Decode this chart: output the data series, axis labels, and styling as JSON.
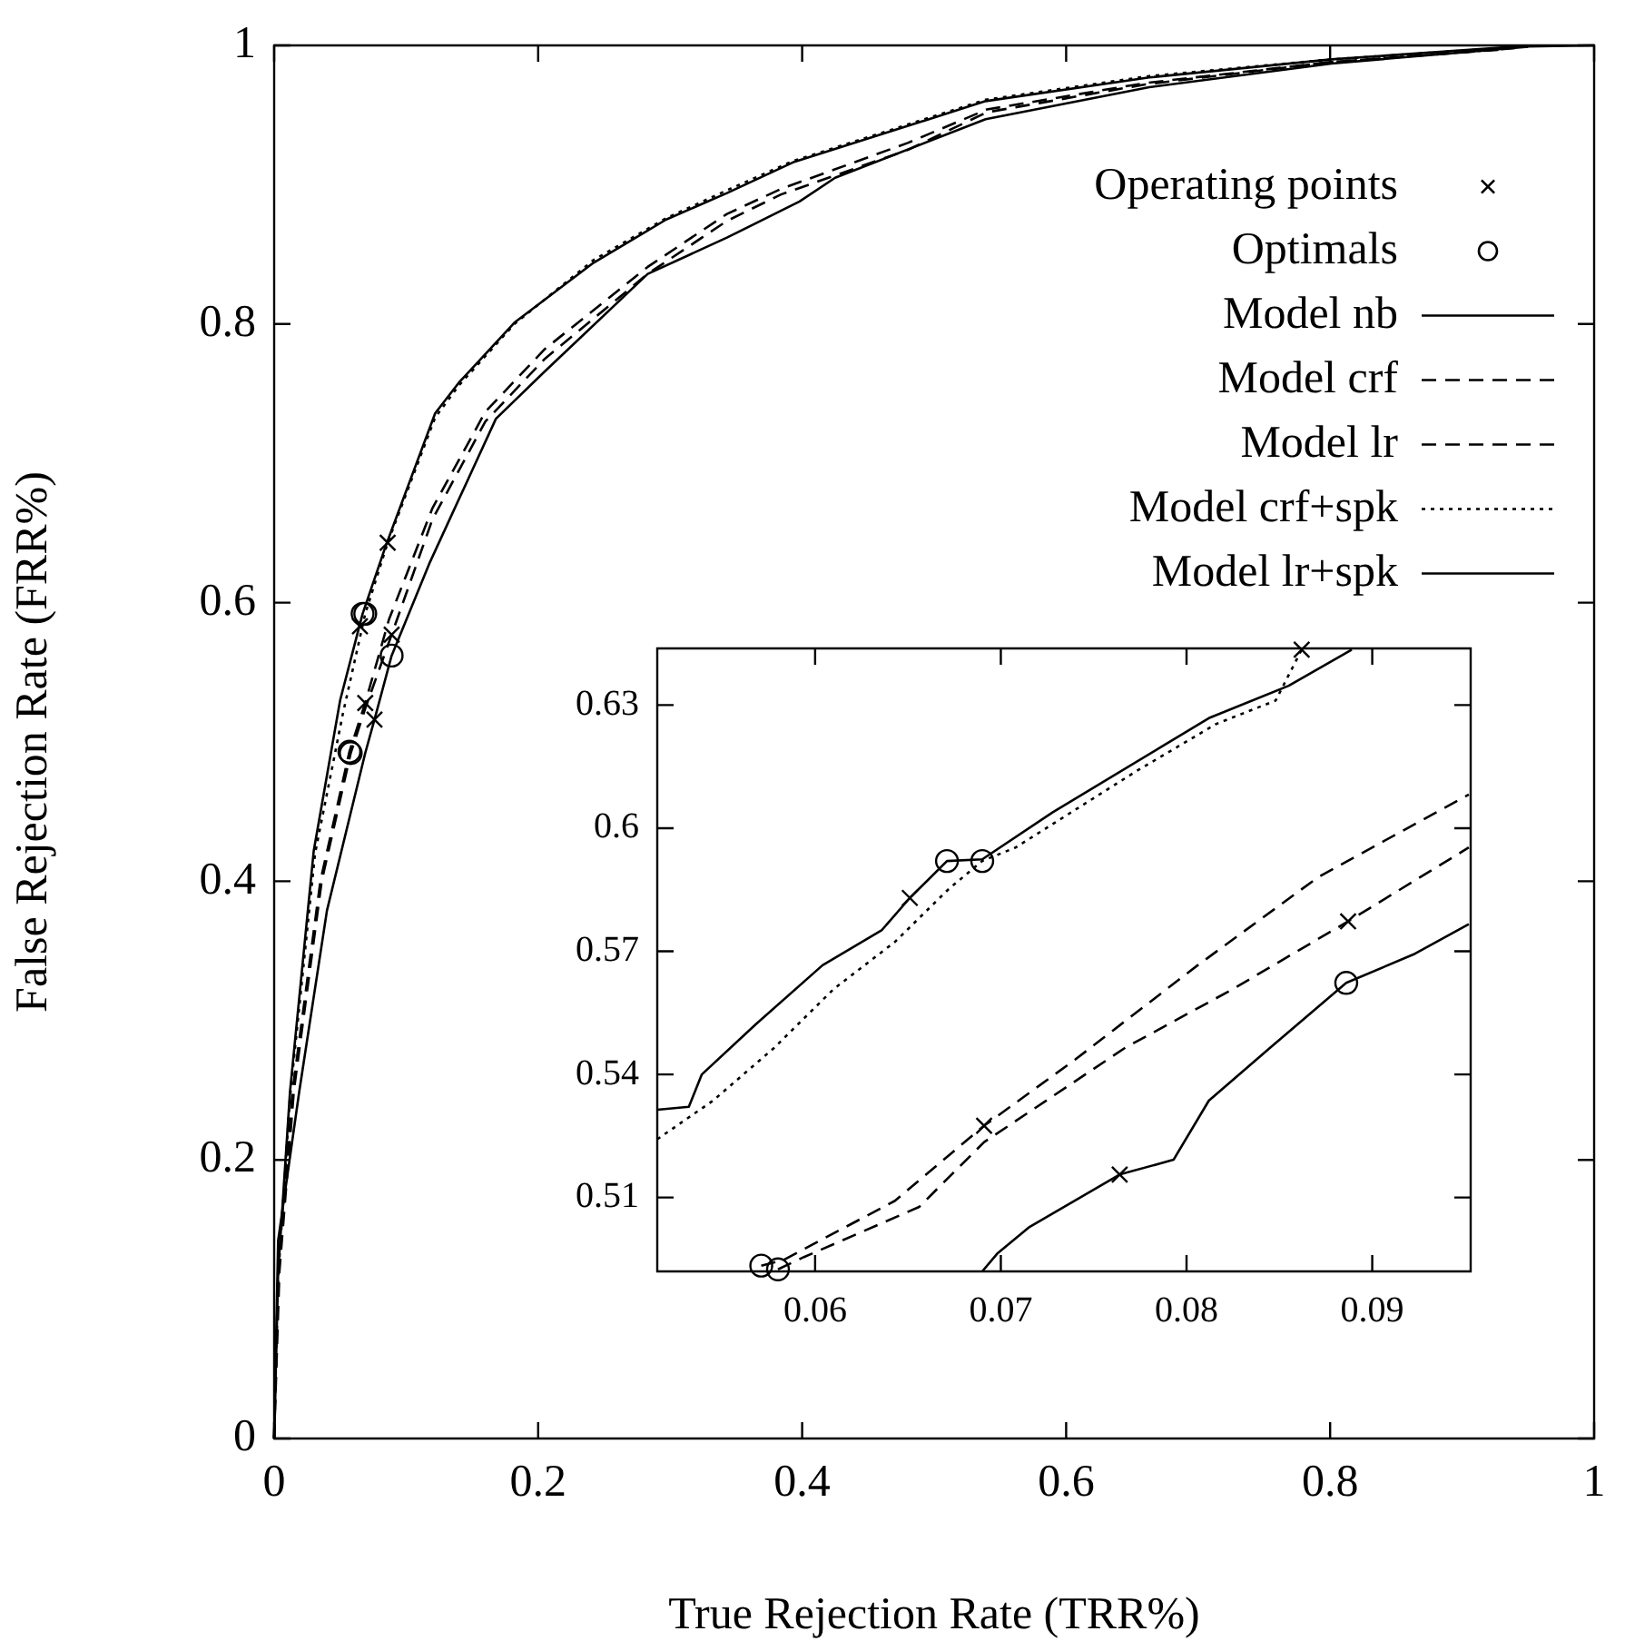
{
  "chart_data": [
    {
      "type": "line",
      "xlabel": "True Rejection Rate (TRR%)",
      "ylabel": "False Rejection Rate (FRR%)",
      "xlim": [
        0,
        1
      ],
      "xticks": [
        0,
        0.2,
        0.4,
        0.6,
        0.8,
        1
      ],
      "ylim": [
        0,
        1
      ],
      "yticks": [
        0,
        0.2,
        0.4,
        0.6,
        0.8,
        1
      ],
      "legend": "top right",
      "series": [
        {
          "type": "scatter",
          "name": "Operating points",
          "color": "#000000",
          "marker": "cross",
          "x": [
            0.076,
            0.089,
            0.069,
            0.086,
            0.065
          ],
          "values": [
            0.516,
            0.577,
            0.528,
            0.643,
            0.583
          ]
        },
        {
          "type": "scatter",
          "name": "Optimals",
          "color": "#000000",
          "marker": "circle",
          "x": [
            0.089,
            0.058,
            0.057,
            0.069,
            0.067
          ],
          "values": [
            0.562,
            0.492,
            0.493,
            0.592,
            0.592
          ]
        },
        {
          "type": "line",
          "name": "Model nb",
          "color": "#000000",
          "line_style": "solid",
          "x": [
            0,
            0.003,
            0.019,
            0.04,
            0.069,
            0.076,
            0.089,
            0.118,
            0.168,
            0.205,
            0.283,
            0.343,
            0.398,
            0.425,
            0.539,
            0.663,
            0.801,
            0.95
          ],
          "values": [
            0,
            0.142,
            0.249,
            0.379,
            0.492,
            0.516,
            0.562,
            0.629,
            0.732,
            0.766,
            0.836,
            0.862,
            0.888,
            0.905,
            0.947,
            0.97,
            0.987,
            0.999
          ]
        },
        {
          "type": "line",
          "name": "Model crf",
          "color": "#000000",
          "line_style": "dashed",
          "x": [
            0,
            0.004,
            0.015,
            0.036,
            0.058,
            0.069,
            0.089,
            0.12,
            0.16,
            0.205,
            0.283,
            0.343,
            0.384,
            0.48,
            0.54,
            0.66,
            0.8,
            0.93
          ],
          "values": [
            0,
            0.12,
            0.25,
            0.4,
            0.492,
            0.524,
            0.577,
            0.66,
            0.73,
            0.775,
            0.836,
            0.874,
            0.893,
            0.925,
            0.952,
            0.972,
            0.988,
            0.997
          ]
        },
        {
          "type": "line",
          "name": "Model lr",
          "color": "#000000",
          "line_style": "dashed",
          "x": [
            0,
            0.003,
            0.014,
            0.035,
            0.057,
            0.069,
            0.087,
            0.12,
            0.16,
            0.205,
            0.283,
            0.343,
            0.384,
            0.48,
            0.54,
            0.66,
            0.8,
            0.94
          ],
          "values": [
            0,
            0.12,
            0.25,
            0.4,
            0.493,
            0.528,
            0.588,
            0.668,
            0.737,
            0.782,
            0.841,
            0.879,
            0.897,
            0.93,
            0.954,
            0.973,
            0.988,
            0.998
          ]
        },
        {
          "type": "line",
          "name": "Model crf+spk",
          "color": "#000000",
          "line_style": "dotted",
          "x": [
            0,
            0.003,
            0.012,
            0.031,
            0.052,
            0.069,
            0.086,
            0.122,
            0.14,
            0.182,
            0.242,
            0.297,
            0.343,
            0.393,
            0.539,
            0.663,
            0.801,
            0.945
          ],
          "values": [
            0,
            0.115,
            0.245,
            0.42,
            0.52,
            0.592,
            0.643,
            0.733,
            0.756,
            0.8,
            0.846,
            0.876,
            0.896,
            0.917,
            0.961,
            0.978,
            0.99,
            0.999
          ]
        },
        {
          "type": "line",
          "name": "Model lr+spk",
          "color": "#000000",
          "line_style": "solid",
          "x": [
            0,
            0.003,
            0.012,
            0.03,
            0.05,
            0.067,
            0.085,
            0.122,
            0.14,
            0.182,
            0.242,
            0.297,
            0.343,
            0.393,
            0.539,
            0.663,
            0.801,
            0.938,
            1
          ],
          "values": [
            0,
            0.119,
            0.249,
            0.422,
            0.53,
            0.592,
            0.642,
            0.736,
            0.758,
            0.801,
            0.844,
            0.875,
            0.894,
            0.916,
            0.96,
            0.977,
            0.99,
            0.999,
            1
          ]
        }
      ]
    },
    {
      "type": "line",
      "xlim": [
        0.0515,
        0.0953
      ],
      "xticks": [
        0.06,
        0.07,
        0.08,
        0.09
      ],
      "ylim": [
        0.492,
        0.6438
      ],
      "yticks": [
        0.51,
        0.54,
        0.57,
        0.6,
        0.63
      ],
      "series": [
        {
          "type": "scatter",
          "color": "#000000",
          "marker": "cross",
          "x": [
            0.0764,
            0.0887,
            0.0691,
            0.0862,
            0.0651
          ],
          "values": [
            0.5156,
            0.5773,
            0.5275,
            0.6435,
            0.583
          ]
        },
        {
          "type": "scatter",
          "color": "#000000",
          "marker": "circle",
          "x": [
            0.0886,
            0.058,
            0.0571,
            0.069,
            0.0671
          ],
          "values": [
            0.5623,
            0.4925,
            0.4934,
            0.592,
            0.592
          ]
        },
        {
          "type": "line",
          "color": "#000000",
          "line_style": "solid",
          "x": [
            0.069,
            0.0698,
            0.0715,
            0.0764,
            0.0793,
            0.0812,
            0.0845,
            0.0886,
            0.0923,
            0.0952
          ],
          "values": [
            0.492,
            0.4963,
            0.5027,
            0.5156,
            0.5192,
            0.5336,
            0.5465,
            0.5623,
            0.5694,
            0.5766
          ]
        },
        {
          "type": "line",
          "color": "#000000",
          "line_style": "dashed",
          "x": [
            0.058,
            0.0594,
            0.0656,
            0.0691,
            0.0767,
            0.0825,
            0.0887,
            0.0952
          ],
          "values": [
            0.4925,
            0.4955,
            0.5077,
            0.5235,
            0.5465,
            0.5608,
            0.5773,
            0.5953
          ]
        },
        {
          "type": "line",
          "color": "#000000",
          "line_style": "dashed",
          "x": [
            0.0571,
            0.0583,
            0.0643,
            0.0691,
            0.074,
            0.0806,
            0.0871,
            0.0952
          ],
          "values": [
            0.4934,
            0.4948,
            0.5092,
            0.5275,
            0.5436,
            0.5666,
            0.5881,
            0.6082
          ]
        },
        {
          "type": "line",
          "color": "#000000",
          "line_style": "dotted",
          "x": [
            0.0515,
            0.0545,
            0.0578,
            0.061,
            0.0643,
            0.0672,
            0.069,
            0.0708,
            0.0773,
            0.0816,
            0.0848,
            0.0862
          ],
          "values": [
            0.5242,
            0.5336,
            0.5465,
            0.5608,
            0.5723,
            0.5852,
            0.592,
            0.5953,
            0.6139,
            0.6254,
            0.6311,
            0.6435
          ]
        },
        {
          "type": "line",
          "color": "#000000",
          "line_style": "solid",
          "x": [
            0.0515,
            0.0532,
            0.0539,
            0.0568,
            0.0604,
            0.0636,
            0.0651,
            0.0671,
            0.069,
            0.0728,
            0.0786,
            0.0812,
            0.0855,
            0.0889
          ],
          "values": [
            0.5314,
            0.5321,
            0.54,
            0.5522,
            0.5666,
            0.5752,
            0.583,
            0.592,
            0.5924,
            0.6039,
            0.6197,
            0.6268,
            0.6347,
            0.6435
          ]
        }
      ]
    }
  ]
}
